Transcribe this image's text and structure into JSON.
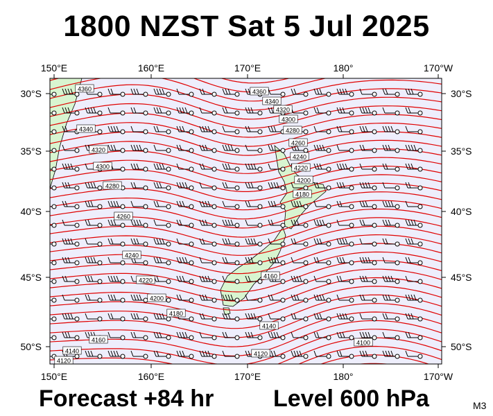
{
  "header": {
    "title": "1800 NZST Sat 5 Jul 2025"
  },
  "footer": {
    "forecast": "Forecast +84 hr",
    "level": "Level 600 hPa",
    "model": "M3"
  },
  "map": {
    "lon_labels": [
      "150°E",
      "160°E",
      "170°E",
      "180°",
      "170°W"
    ],
    "lat_labels": [
      "30°S",
      "35°S",
      "40°S",
      "45°S",
      "50°S"
    ],
    "contour_labels": [
      "4360",
      "4340",
      "4320",
      "4300",
      "4280",
      "4260",
      "4240",
      "4220",
      "4200",
      "4180",
      "4160",
      "4140",
      "4120",
      "4100"
    ],
    "colors": {
      "background": "#eeeefc",
      "land": "#d8f5d0",
      "contour": "#e00000",
      "coast": "#000000"
    }
  }
}
